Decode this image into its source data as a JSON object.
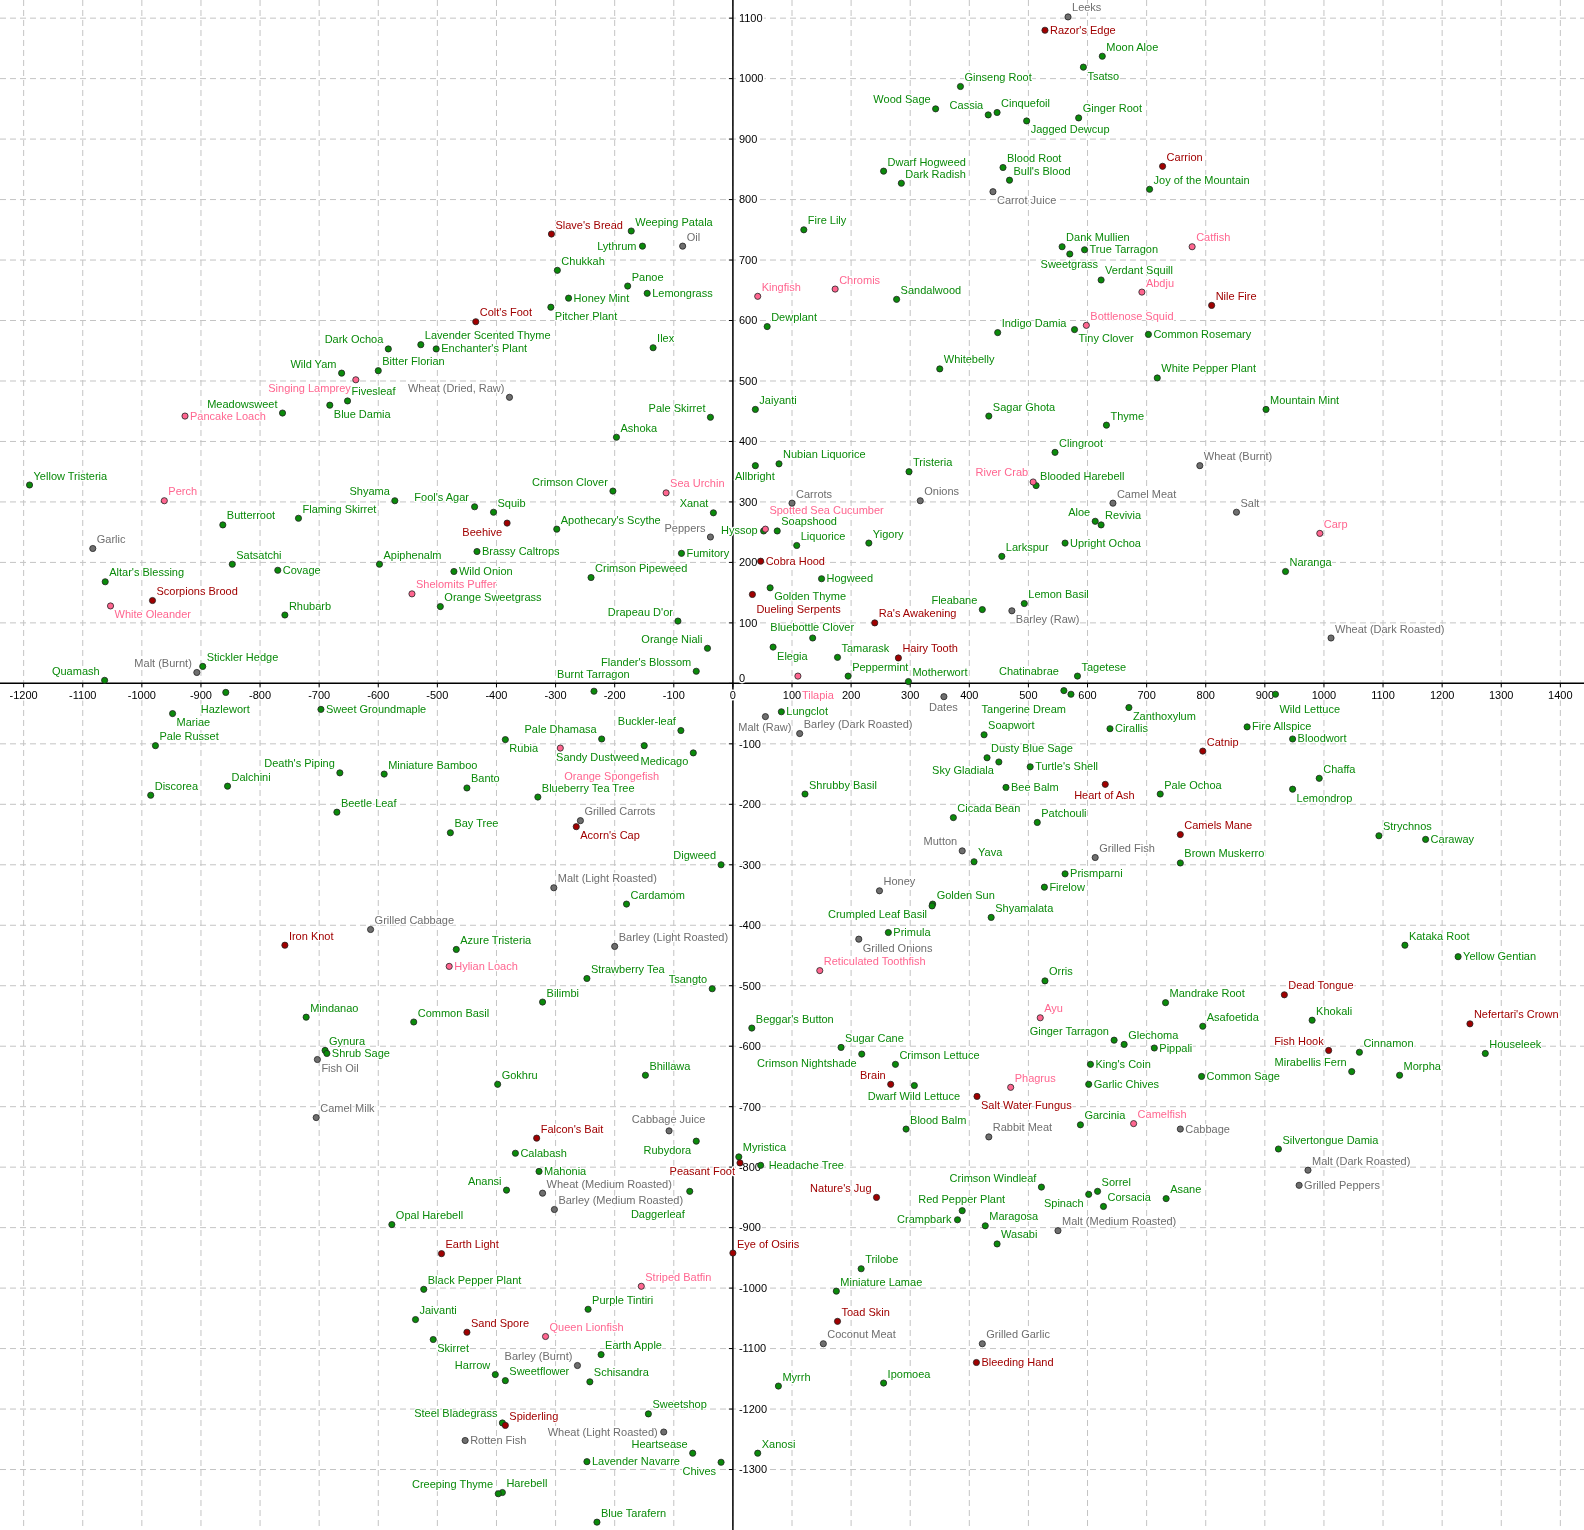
{
  "chart_data": {
    "type": "scatter",
    "xlim": [
      -1240,
      1440
    ],
    "ylim": [
      -1400,
      1130
    ],
    "xticks": [
      -1200,
      -1100,
      -1000,
      -900,
      -800,
      -700,
      -600,
      -500,
      -400,
      -300,
      -200,
      -100,
      0,
      100,
      200,
      300,
      400,
      500,
      600,
      700,
      800,
      900,
      1000,
      1100,
      1200,
      1300,
      1400
    ],
    "yticks": [
      -1300,
      -1200,
      -1100,
      -1000,
      -900,
      -800,
      -700,
      -600,
      -500,
      -400,
      -300,
      -200,
      -100,
      0,
      100,
      200,
      300,
      400,
      500,
      600,
      700,
      800,
      900,
      1000,
      1100
    ],
    "grid": true,
    "marker": "circle",
    "series": [
      {
        "color": "#0a8a0a",
        "x": [
          625,
          593,
          385,
          343,
          447,
          432,
          497,
          585,
          457,
          255,
          468,
          285,
          705,
          -172,
          -153,
          120,
          557,
          595,
          570,
          -297,
          623,
          -178,
          -145,
          -278,
          277,
          -308,
          58,
          448,
          578,
          703,
          -528,
          -583,
          -502,
          -135,
          350,
          -662,
          -600,
          718,
          -682,
          -652,
          -762,
          38,
          433,
          902,
          -38,
          632,
          -197,
          545,
          38,
          78,
          298,
          -1190,
          -203,
          513,
          -572,
          -437,
          -405,
          -735,
          -863,
          -33,
          613,
          623,
          -298,
          52,
          75,
          108,
          230,
          -433,
          -87,
          455,
          562,
          -847,
          -770,
          -598,
          935,
          -472,
          -240,
          150,
          63,
          -1062,
          493,
          422,
          -758,
          -495,
          -93,
          135,
          -43,
          68,
          177,
          -62,
          195,
          297,
          583,
          572,
          560,
          -897,
          -1063,
          -235,
          82,
          -88,
          -150,
          -222,
          -858,
          -948,
          -697,
          918,
          670,
          870,
          947,
          425,
          638,
          -385,
          -977,
          -67,
          430,
          450,
          503,
          -665,
          -590,
          -855,
          -985,
          -450,
          -330,
          462,
          723,
          947,
          992,
          122,
          -670,
          373,
          515,
          -478,
          1093,
          1172,
          408,
          757,
          -20,
          562,
          527,
          -180,
          338,
          337,
          437,
          263,
          -468,
          1137,
          1227,
          -247,
          528,
          -35,
          -322,
          732,
          -722,
          -540,
          795,
          980,
          32,
          183,
          218,
          645,
          662,
          713,
          1060,
          1273,
          -690,
          -687,
          275,
          605,
          1047,
          1128,
          -148,
          -398,
          307,
          602,
          793,
          293,
          588,
          923,
          -62,
          -368,
          10,
          47,
          -328,
          -383,
          -73,
          522,
          602,
          617,
          733,
          388,
          380,
          427,
          627,
          -577,
          447,
          217,
          -523,
          175,
          -245,
          -537,
          -507,
          -223,
          -402,
          -385,
          -242,
          77,
          255,
          -143,
          -390,
          -68,
          42,
          -20,
          -247,
          -390,
          -397,
          -230
        ],
        "values": [
          1037,
          1019,
          987,
          950,
          944,
          940,
          930,
          935,
          853,
          847,
          832,
          827,
          817,
          748,
          723,
          750,
          722,
          717,
          710,
          683,
          667,
          657,
          645,
          637,
          635,
          622,
          590,
          580,
          585,
          577,
          560,
          553,
          553,
          555,
          520,
          513,
          517,
          505,
          460,
          467,
          447,
          453,
          442,
          453,
          440,
          427,
          407,
          382,
          360,
          363,
          350,
          328,
          318,
          327,
          302,
          292,
          283,
          273,
          262,
          282,
          268,
          262,
          255,
          252,
          252,
          228,
          232,
          218,
          215,
          210,
          232,
          197,
          187,
          197,
          185,
          185,
          175,
          173,
          158,
          168,
          132,
          122,
          113,
          127,
          103,
          75,
          58,
          60,
          43,
          20,
          12,
          3,
          12,
          -18,
          -12,
          28,
          5,
          -13,
          -47,
          -78,
          -103,
          -92,
          -15,
          -50,
          -43,
          -18,
          -40,
          -72,
          -92,
          -85,
          -75,
          -93,
          -103,
          -115,
          -123,
          -130,
          -138,
          -148,
          -150,
          -170,
          -185,
          -173,
          -188,
          -172,
          -183,
          -175,
          -157,
          -183,
          -213,
          -222,
          -230,
          -247,
          -252,
          -258,
          -295,
          -297,
          -300,
          -315,
          -337,
          -365,
          -365,
          -368,
          -387,
          -412,
          -440,
          -433,
          -452,
          -488,
          -492,
          -505,
          -527,
          -528,
          -552,
          -560,
          -567,
          -557,
          -570,
          -602,
          -613,
          -590,
          -597,
          -603,
          -610,
          -612,
          -607,
          -612,
          -630,
          -630,
          -642,
          -648,
          -648,
          -663,
          -665,
          -663,
          -650,
          -737,
          -730,
          -770,
          -757,
          -777,
          -783,
          -797,
          -807,
          -838,
          -840,
          -833,
          -845,
          -840,
          -852,
          -872,
          -887,
          -897,
          -865,
          -895,
          -927,
          -968,
          -1002,
          -1005,
          -1035,
          -1052,
          -1085,
          -1110,
          -1143,
          -1153,
          -1155,
          -1162,
          -1157,
          -1208,
          -1223,
          -1273,
          -1273,
          -1288,
          -1287,
          -1338,
          -1340,
          -1387
        ],
        "value_labels": [
          "Moon Aloe",
          "Tsatso",
          "Ginseng Root",
          "Wood Sage",
          "Cinquefoil",
          "Cassia",
          "Jagged Dewcup",
          "Ginger Root",
          "Blood Root",
          "Dwarf Hogweed",
          "Bull's Blood",
          "Dark Radish",
          "Joy of the Mountain",
          "Weeping Patala",
          "Lythrum",
          "Fire Lily",
          "Dank Mullien",
          "True Tarragon",
          "Sweetgrass",
          "Chukkah",
          "Verdant Squill",
          "Panoe",
          "Lemongrass",
          "Honey Mint",
          "Sandalwood",
          "Pitcher Plant",
          "Dewplant",
          "Indigo Damia",
          "Tiny Clover",
          "Common Rosemary",
          "Lavender Scented Thyme",
          "Dark Ochoa",
          "Enchanter's Plant",
          "Ilex",
          "Whitebelly",
          "Wild Yam",
          "Bitter Florian",
          "White Pepper Plant",
          "Blue Damia",
          "Fivesleaf",
          "Meadowsweet",
          "Jaiyanti",
          "Sagar Ghota",
          "Mountain Mint",
          "Pale Skirret",
          "Thyme",
          "Ashoka",
          "Clingroot",
          "Allbright",
          "Nubian Liquorice",
          "Tristeria",
          "Yellow Tristeria",
          "Crimson Clover",
          "Blooded Harebell",
          "Shyama",
          "Fool's Agar",
          "Squib",
          "Flaming Skirret",
          "Butterroot",
          "Xanat",
          "Aloe",
          "Revivia",
          "Apothecary's Scythe",
          "Hyssop",
          "Soapshood",
          "Liquorice",
          "Yigory",
          "Brassy Caltrops",
          "Fumitory",
          "Larkspur",
          "Upright Ochoa",
          "Satsatchi",
          "Covage",
          "Apiphenalm",
          "Naranga",
          "Wild Onion",
          "Crimson Pipeweed",
          "Hogweed",
          "Golden Thyme",
          "Altar's Blessing",
          "Lemon Basil",
          "Fleabane",
          "Rhubarb",
          "Orange Sweetgrass",
          "Drapeau D'or",
          "Bluebottle Clover",
          "Orange Niali",
          "Elegia",
          "Tamarask",
          "Flander's Blossom",
          "Peppermint",
          "Motherwort",
          "Tagetese",
          "Tangerine Dream",
          "Chatinabrae",
          "Stickler Hedge",
          "Quamash",
          "Burnt Tarragon",
          "Lungclot",
          "Buckler-leaf",
          "Sandy Dustweed",
          "Pale Dhamasa",
          "Hazlewort",
          "Mariae",
          "Sweet Groundmaple",
          "Wild Lettuce",
          "Zanthoxylum",
          "Fire Allspice",
          "Bloodwort",
          "Soapwort",
          "Cirallis",
          "Rubia",
          "Pale Russet",
          "Medicago",
          "Dusty Blue Sage",
          "Sky Gladiala",
          "Turtle's Shell",
          "Death's Piping",
          "Miniature Bamboo",
          "Dalchini",
          "Discorea",
          "Banto",
          "Blueberry Tea Tree",
          "Bee Balm",
          "Pale Ochoa",
          "Lemondrop",
          "Chaffa",
          "Shrubby Basil",
          "Beetle Leaf",
          "Cicada Bean",
          "Patchouli",
          "Bay Tree",
          "Strychnos",
          "Caraway",
          "Yava",
          "Brown Muskerro",
          "Digweed",
          "Prismparni",
          "Firelow",
          "Cardamom",
          "Golden Sun",
          "Crumpled Leaf Basil",
          "Shyamalata",
          "Primula",
          "Azure Tristeria",
          "Kataka Root",
          "Yellow Gentian",
          "Strawberry Tea",
          "Orris",
          "Tsangto",
          "Bilimbi",
          "Mandrake Root",
          "Mindanao",
          "Common Basil",
          "Asafoetida",
          "Khokali",
          "Beggar's Button",
          "Sugar Cane",
          "Crimson Nightshade",
          "Ginger Tarragon",
          "Glechoma",
          "Pippali",
          "Cinnamon",
          "Houseleek",
          "Gynura",
          "Shrub Sage",
          "Crimson Lettuce",
          "King's Coin",
          "Mirabellis Fern",
          "Morpha",
          "Bhillawa",
          "Gokhru",
          "Dwarf Wild Lettuce",
          "Garlic Chives",
          "Common Sage",
          "Blood Balm",
          "Garcinia",
          "Silvertongue Damia",
          "Rubydora",
          "Calabash",
          "Myristica",
          "Headache Tree",
          "Mahonia",
          "Anansi",
          "Daggerleaf",
          "Crimson Windleaf",
          "Spinach",
          "Sorrel",
          "Asane",
          "Red Pepper Plant",
          "Crampbark",
          "Maragosa",
          "Corsacia",
          "Opal Harebell",
          "Wasabi",
          "Trilobe",
          "Black Pepper Plant",
          "Miniature Lamae",
          "Purple Tintiri",
          "Jaivanti",
          "Skirret",
          "Earth Apple",
          "Harrow",
          "Sweetflower",
          "Schisandra",
          "Myrrh",
          "Ipomoea",
          "Sweetshop",
          "Steel Bladegrass",
          "Heartsease",
          "Xanosi",
          "Chives",
          "Lavender Navarre",
          "Harebell",
          "Creeping Thyme",
          "Blue Tarafern"
        ]
      },
      {
        "color": "#a00000",
        "x": [
          528,
          727,
          -307,
          810,
          -435,
          -382,
          47,
          33,
          -982,
          240,
          280,
          795,
          630,
          -265,
          757,
          -758,
          933,
          1247,
          1008,
          267,
          413,
          -332,
          12,
          243,
          -493,
          0,
          177,
          -450,
          412,
          -385
        ],
        "values": [
          1080,
          855,
          743,
          625,
          598,
          265,
          202,
          147,
          137,
          100,
          42,
          -112,
          -167,
          -237,
          -250,
          -433,
          -515,
          -563,
          -607,
          -663,
          -683,
          -752,
          -793,
          -850,
          -943,
          -942,
          -1055,
          -1073,
          -1123,
          -1227
        ],
        "value_labels": [
          "Razor's Edge",
          "Carrion",
          "Slave's Bread",
          "Nile Fire",
          "Colt's Foot",
          "Beehive",
          "Cobra Hood",
          "Dueling Serpents",
          "Scorpions Brood",
          "Ra's Awakening",
          "Hairy Tooth",
          "Catnip",
          "Heart of Ash",
          "Acorn's Cap",
          "Camels Mane",
          "Iron Knot",
          "Dead Tongue",
          "Nefertari's Crown",
          "Fish Hook",
          "Brain",
          "Salt Water Fungus",
          "Falcon's Bait",
          "Peasant Foot",
          "Nature's Jug",
          "Earth Light",
          "Eye of Osiris",
          "Toad Skin",
          "Sand Spore",
          "Bleeding Hand",
          "Spiderling"
        ]
      },
      {
        "color": "#ff6690",
        "x": [
          777,
          42,
          173,
          692,
          598,
          -638,
          -927,
          -962,
          -113,
          508,
          993,
          55,
          -1053,
          -543,
          110,
          -292,
          -480,
          147,
          520,
          470,
          678,
          -155,
          -317
        ],
        "values": [
          722,
          640,
          652,
          647,
          592,
          502,
          442,
          302,
          315,
          333,
          248,
          255,
          128,
          148,
          12,
          -107,
          -468,
          -475,
          -553,
          -668,
          -728,
          -997,
          -1080
        ],
        "value_labels": [
          "Catfish",
          "Kingfish",
          "Chromis",
          "Abdju",
          "Bottlenose Squid",
          "Singing Lamprey",
          "Pancake Loach",
          "Perch",
          "Sea Urchin",
          "River Crab",
          "Carp",
          "Spotted Sea Cucumber",
          "White Oleander",
          "Shelomits Puffer",
          "Tilapia",
          "Orange Spongefish",
          "Hylian Loach",
          "Reticulated Toothfish",
          "Ayu",
          "Phagrus",
          "Camelfish",
          "Striped Batfin",
          "Queen Lionfish"
        ]
      },
      {
        "color": "#6e6e6e",
        "x": [
          567,
          440,
          -85,
          -378,
          790,
          -1083,
          -38,
          100,
          317,
          643,
          852,
          472,
          1012,
          -907,
          357,
          55,
          113,
          -258,
          388,
          613,
          -303,
          248,
          -613,
          213,
          -200,
          -703,
          -705,
          433,
          757,
          -108,
          973,
          -322,
          958,
          -302,
          550,
          153,
          422,
          -263,
          -117,
          -453
        ],
        "values": [
          1102,
          813,
          723,
          473,
          360,
          223,
          242,
          298,
          302,
          298,
          283,
          120,
          75,
          18,
          -22,
          -55,
          -83,
          -227,
          -277,
          -288,
          -338,
          -343,
          -407,
          -423,
          -435,
          -622,
          -718,
          -750,
          -737,
          -740,
          -805,
          -843,
          -830,
          -870,
          -905,
          -1092,
          -1092,
          -1128,
          -1238,
          -1252
        ],
        "value_labels": [
          "Leeks",
          "Carrot Juice",
          "Oil",
          "Wheat (Dried, Raw)",
          "Wheat (Burnt)",
          "Garlic",
          "Peppers",
          "Carrots",
          "Onions",
          "Camel Meat",
          "Salt",
          "Barley (Raw)",
          "Wheat (Dark Roasted)",
          "Malt (Burnt)",
          "Dates",
          "Malt (Raw)",
          "Barley (Dark Roasted)",
          "Grilled Carrots",
          "Mutton",
          "Grilled Fish",
          "Malt (Light Roasted)",
          "Honey",
          "Grilled Cabbage",
          "Grilled Onions",
          "Barley (Light Roasted)",
          "Fish Oil",
          "Camel Milk",
          "Rabbit Meat",
          "Cabbage",
          "Cabbage Juice",
          "Malt (Dark Roasted)",
          "Wheat (Medium Roasted)",
          "Grilled Peppers",
          "Barley (Medium Roasted)",
          "Malt (Medium Roasted)",
          "Coconut Meat",
          "Grilled Garlic",
          "Barley (Burnt)",
          "Wheat (Light Roasted)",
          "Rotten Fish"
        ]
      }
    ]
  }
}
